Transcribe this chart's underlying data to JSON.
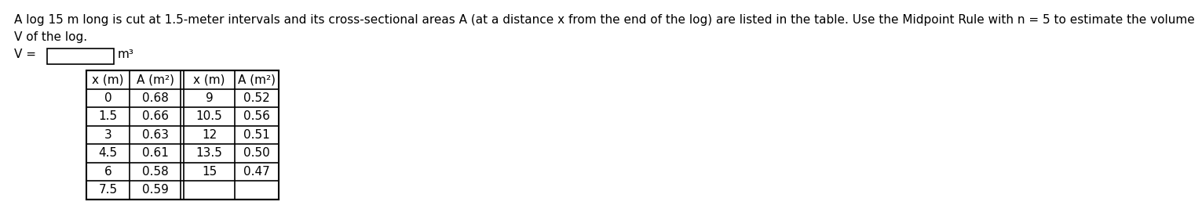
{
  "title_line1": "A log 15 m long is cut at 1.5-meter intervals and its cross-sectional areas A (at a distance x from the end of the log) are listed in the table. Use the Midpoint Rule with n = 5 to estimate the volume",
  "title_line2": "V of the log.",
  "v_label": "V =",
  "v_unit": "m³",
  "col_headers": [
    "x (m)",
    "A (m²)",
    "x (m)",
    "A (m²)"
  ],
  "left_x": [
    "0",
    "1.5",
    "3",
    "4.5",
    "6",
    "7.5"
  ],
  "left_A": [
    "0.68",
    "0.66",
    "0.63",
    "0.61",
    "0.58",
    "0.59"
  ],
  "right_x": [
    "9",
    "10.5",
    "12",
    "13.5",
    "15",
    ""
  ],
  "right_A": [
    "0.52",
    "0.56",
    "0.51",
    "0.50",
    "0.47",
    ""
  ],
  "bg_color": "#ffffff",
  "text_color": "#000000",
  "table_border_color": "#000000",
  "font_size_title": 11.0,
  "font_size_table": 11.0
}
